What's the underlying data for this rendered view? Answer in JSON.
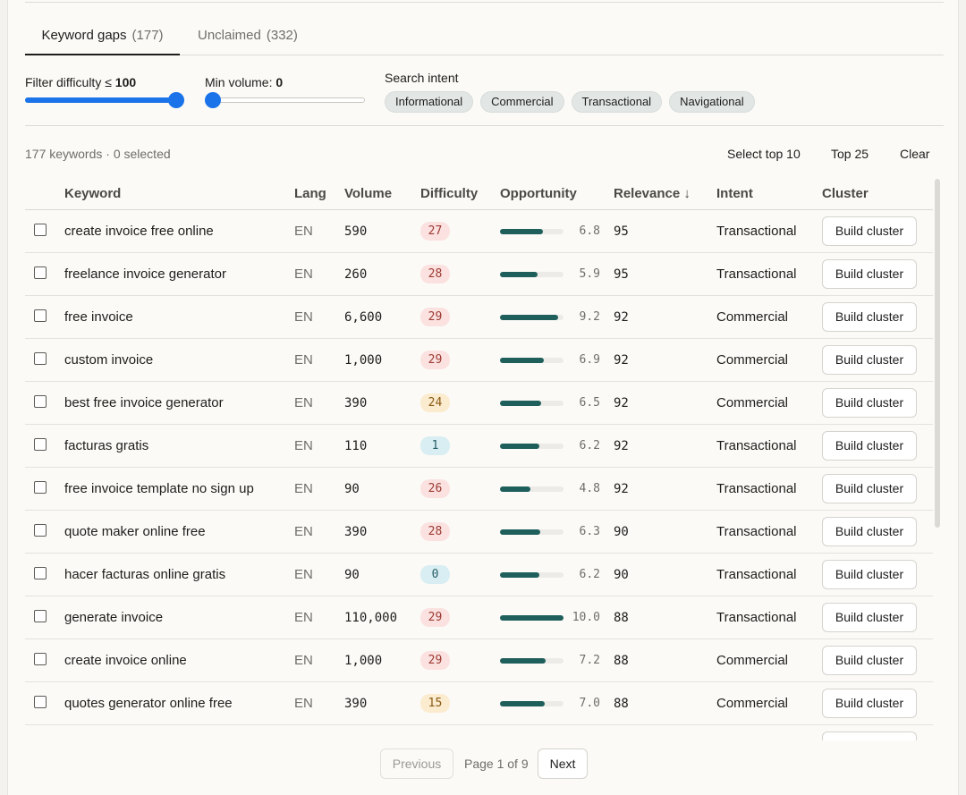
{
  "tabs": [
    {
      "label": "Keyword gaps",
      "count": "(177)"
    },
    {
      "label": "Unclaimed",
      "count": "(332)"
    }
  ],
  "filters": {
    "difficulty_label": "Filter difficulty ≤ ",
    "difficulty_value": "100",
    "difficulty_fraction": 1.0,
    "volume_label": "Min volume: ",
    "volume_value": "0",
    "volume_fraction": 0.0,
    "intent_label": "Search intent",
    "intent_chips": [
      "Informational",
      "Commercial",
      "Transactional",
      "Navigational"
    ]
  },
  "summary": "177 keywords · 0 selected",
  "actions": {
    "select_top10": "Select top 10",
    "top25": "Top 25",
    "clear": "Clear"
  },
  "columns": {
    "keyword": "Keyword",
    "lang": "Lang",
    "volume": "Volume",
    "difficulty": "Difficulty",
    "opportunity": "Opportunity",
    "relevance": "Relevance ↓",
    "intent": "Intent",
    "cluster": "Cluster"
  },
  "rows": [
    {
      "keyword": "create invoice free online",
      "lang": "EN",
      "volume": "590",
      "difficulty": "27",
      "diff_level": "red",
      "opportunity": "6.8",
      "relevance": "95",
      "intent": "Transactional",
      "button": "Build cluster"
    },
    {
      "keyword": "freelance invoice generator",
      "lang": "EN",
      "volume": "260",
      "difficulty": "28",
      "diff_level": "red",
      "opportunity": "5.9",
      "relevance": "95",
      "intent": "Transactional",
      "button": "Build cluster"
    },
    {
      "keyword": "free invoice",
      "lang": "EN",
      "volume": "6,600",
      "difficulty": "29",
      "diff_level": "red",
      "opportunity": "9.2",
      "relevance": "92",
      "intent": "Commercial",
      "button": "Build cluster"
    },
    {
      "keyword": "custom invoice",
      "lang": "EN",
      "volume": "1,000",
      "difficulty": "29",
      "diff_level": "red",
      "opportunity": "6.9",
      "relevance": "92",
      "intent": "Commercial",
      "button": "Build cluster"
    },
    {
      "keyword": "best free invoice generator",
      "lang": "EN",
      "volume": "390",
      "difficulty": "24",
      "diff_level": "amber",
      "opportunity": "6.5",
      "relevance": "92",
      "intent": "Commercial",
      "button": "Build cluster"
    },
    {
      "keyword": "facturas gratis",
      "lang": "EN",
      "volume": "110",
      "difficulty": "1",
      "diff_level": "cyan",
      "opportunity": "6.2",
      "relevance": "92",
      "intent": "Transactional",
      "button": "Build cluster"
    },
    {
      "keyword": "free invoice template no sign up",
      "lang": "EN",
      "volume": "90",
      "difficulty": "26",
      "diff_level": "red",
      "opportunity": "4.8",
      "relevance": "92",
      "intent": "Transactional",
      "button": "Build cluster"
    },
    {
      "keyword": "quote maker online free",
      "lang": "EN",
      "volume": "390",
      "difficulty": "28",
      "diff_level": "red",
      "opportunity": "6.3",
      "relevance": "90",
      "intent": "Transactional",
      "button": "Build cluster"
    },
    {
      "keyword": "hacer facturas online gratis",
      "lang": "EN",
      "volume": "90",
      "difficulty": "0",
      "diff_level": "cyan",
      "opportunity": "6.2",
      "relevance": "90",
      "intent": "Transactional",
      "button": "Build cluster"
    },
    {
      "keyword": "generate invoice",
      "lang": "EN",
      "volume": "110,000",
      "difficulty": "29",
      "diff_level": "red",
      "opportunity": "10.0",
      "relevance": "88",
      "intent": "Transactional",
      "button": "Build cluster"
    },
    {
      "keyword": "create invoice online",
      "lang": "EN",
      "volume": "1,000",
      "difficulty": "29",
      "diff_level": "red",
      "opportunity": "7.2",
      "relevance": "88",
      "intent": "Commercial",
      "button": "Build cluster"
    },
    {
      "keyword": "quotes generator online free",
      "lang": "EN",
      "volume": "390",
      "difficulty": "15",
      "diff_level": "amber",
      "opportunity": "7.0",
      "relevance": "88",
      "intent": "Commercial",
      "button": "Build cluster"
    }
  ],
  "pagination": {
    "previous": "Previous",
    "info": "Page 1 of 9",
    "next": "Next"
  }
}
